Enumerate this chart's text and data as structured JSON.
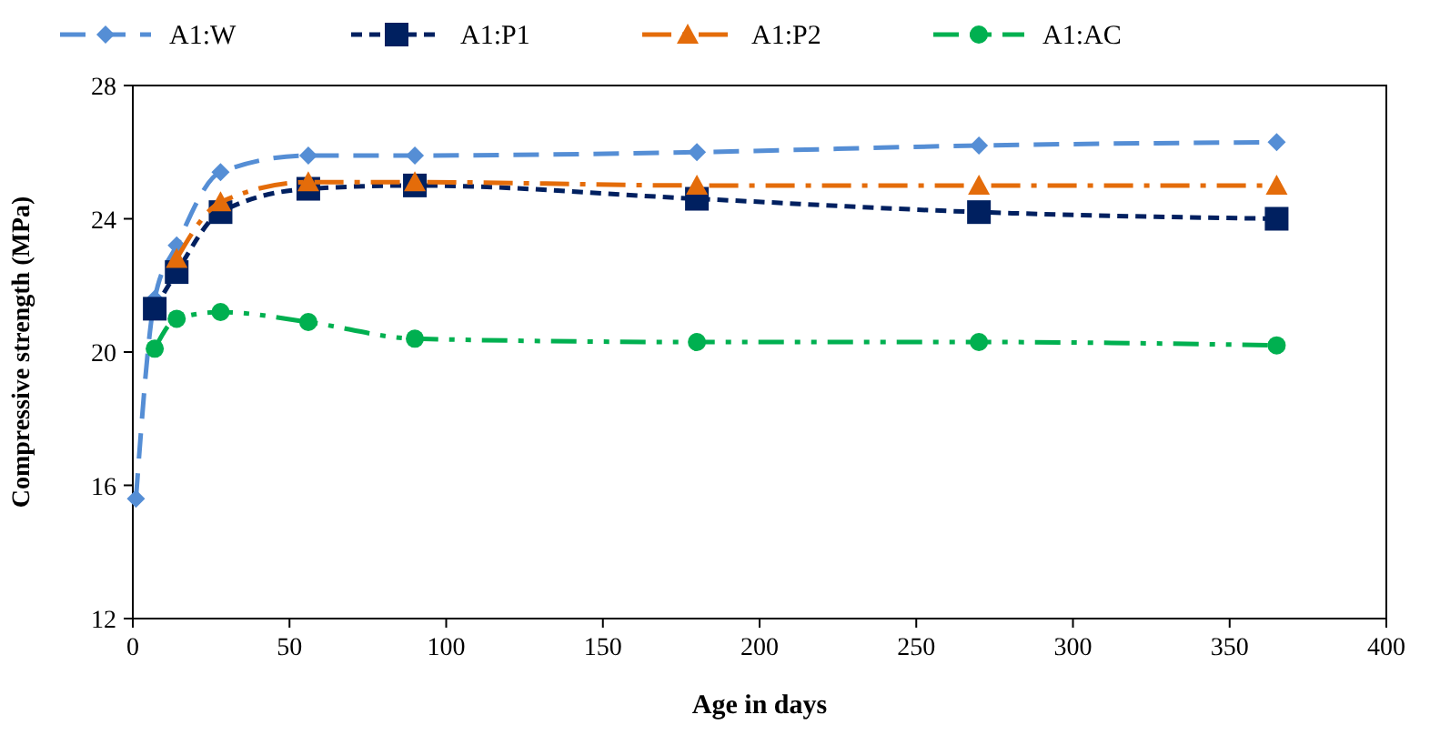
{
  "chart_data": {
    "type": "line",
    "xlabel": "Age in days",
    "ylabel": "Compressive strength (MPa)",
    "xlim": [
      0,
      400
    ],
    "xticks": [
      0,
      50,
      100,
      150,
      200,
      250,
      300,
      350,
      400
    ],
    "ylim": [
      12,
      28
    ],
    "yticks": [
      12,
      16,
      20,
      24,
      28
    ],
    "grid": false,
    "legend": "top",
    "line_style": "dashed",
    "series": [
      {
        "name": "A1:W",
        "color": "#558ed5",
        "marker": "diamond",
        "x": [
          1,
          7,
          14,
          28,
          56,
          90,
          180,
          270,
          365
        ],
        "values": [
          15.6,
          21.6,
          23.2,
          25.4,
          25.9,
          25.9,
          26.0,
          26.2,
          26.3
        ]
      },
      {
        "name": "A1:P1",
        "color": "#002060",
        "marker": "square",
        "x": [
          7,
          14,
          28,
          56,
          90,
          180,
          270,
          365
        ],
        "values": [
          21.3,
          22.4,
          24.2,
          24.9,
          25.0,
          24.6,
          24.2,
          24.0
        ]
      },
      {
        "name": "A1:P2",
        "color": "#e46c0a",
        "marker": "triangle",
        "x": [
          14,
          28,
          56,
          90,
          180,
          270,
          365
        ],
        "values": [
          22.8,
          24.5,
          25.1,
          25.1,
          25.0,
          25.0,
          25.0
        ]
      },
      {
        "name": "A1:AC",
        "color": "#00b050",
        "marker": "circle",
        "x": [
          7,
          14,
          28,
          56,
          90,
          180,
          270,
          365
        ],
        "values": [
          20.1,
          21.0,
          21.2,
          20.9,
          20.4,
          20.3,
          20.3,
          20.2
        ]
      }
    ]
  }
}
